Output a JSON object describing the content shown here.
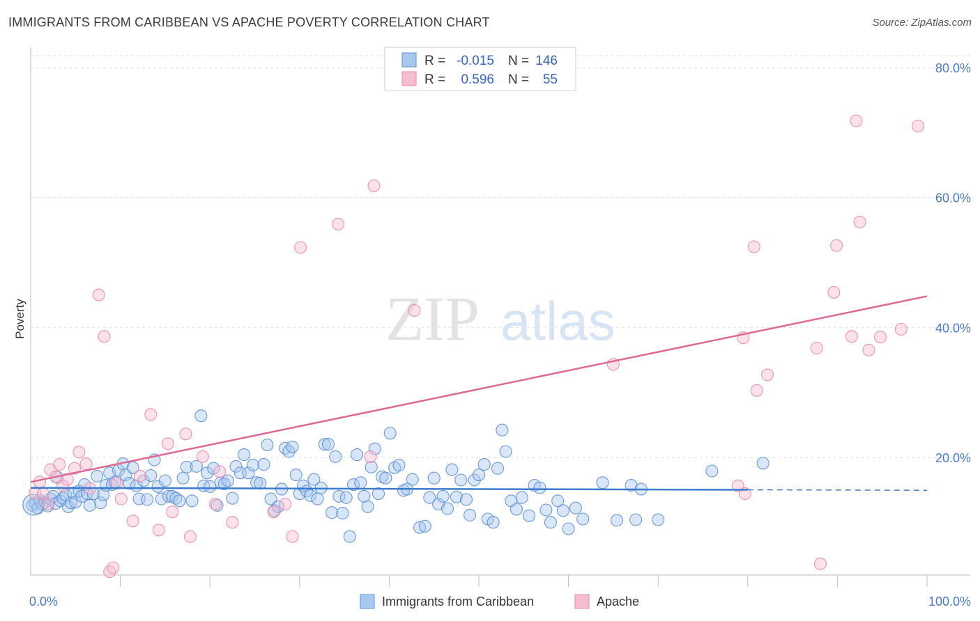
{
  "title": "IMMIGRANTS FROM CARIBBEAN VS APACHE POVERTY CORRELATION CHART",
  "source": "Source: ZipAtlas.com",
  "watermark": {
    "zip": "ZIP",
    "atlas": "atlas"
  },
  "colors": {
    "blue_fill": "#a8c8ee",
    "blue_stroke": "#5b8fd6",
    "blue_line": "#3b7bd0",
    "pink_fill": "#f6bcd0",
    "pink_stroke": "#e98aaa",
    "pink_line": "#e06892",
    "grid": "#dddddd",
    "axis_text": "#4a7cc4"
  },
  "legend": {
    "rows": [
      {
        "r_label": "R =",
        "r_value": "-0.015",
        "n_label": "N =",
        "n_value": "146"
      },
      {
        "r_label": "R =",
        "r_value": "0.596",
        "n_label": "N =",
        "n_value": "55"
      }
    ]
  },
  "chart_data": {
    "type": "scatter",
    "title": "IMMIGRANTS FROM CARIBBEAN VS APACHE POVERTY CORRELATION CHART",
    "xlabel": "",
    "ylabel": "Poverty",
    "xlim": [
      0,
      100
    ],
    "ylim": [
      0,
      80
    ],
    "x_tick_labels": [
      "0.0%",
      "100.0%"
    ],
    "y_ticks": [
      20,
      40,
      60,
      80
    ],
    "y_tick_labels": [
      "20.0%",
      "40.0%",
      "60.0%",
      "80.0%"
    ],
    "grid": true,
    "series": [
      {
        "name": "Immigrants from Caribbean",
        "color": "#5b8fd6",
        "trend": {
          "x0": 0,
          "y0": 15.3,
          "x1": 80,
          "y1": 15.0,
          "dashed_to": 100
        },
        "points": [
          [
            0.2,
            12.6
          ],
          [
            0.5,
            13.0
          ],
          [
            0.8,
            12.2
          ],
          [
            1.0,
            13.4
          ],
          [
            1.3,
            12.8
          ],
          [
            1.6,
            13.1
          ],
          [
            1.9,
            12.5
          ],
          [
            2.2,
            13.6
          ],
          [
            2.5,
            14.0
          ],
          [
            2.8,
            12.9
          ],
          [
            3.0,
            16.9
          ],
          [
            3.3,
            13.3
          ],
          [
            3.6,
            13.7
          ],
          [
            3.9,
            14.2
          ],
          [
            4.2,
            12.4
          ],
          [
            4.5,
            13.0
          ],
          [
            4.8,
            14.5
          ],
          [
            5.0,
            13.1
          ],
          [
            5.4,
            14.8
          ],
          [
            5.7,
            14.0
          ],
          [
            6.0,
            15.8
          ],
          [
            6.3,
            14.4
          ],
          [
            6.6,
            12.6
          ],
          [
            7.0,
            14.4
          ],
          [
            7.4,
            17.1
          ],
          [
            7.8,
            13.0
          ],
          [
            8.1,
            14.2
          ],
          [
            8.4,
            15.7
          ],
          [
            8.8,
            17.6
          ],
          [
            9.1,
            15.8
          ],
          [
            9.4,
            16.2
          ],
          [
            9.8,
            18.0
          ],
          [
            10.3,
            19.0
          ],
          [
            10.6,
            17.3
          ],
          [
            11.0,
            16.0
          ],
          [
            11.4,
            18.4
          ],
          [
            11.8,
            15.6
          ],
          [
            12.1,
            13.6
          ],
          [
            12.6,
            16.4
          ],
          [
            13.0,
            13.5
          ],
          [
            13.4,
            17.2
          ],
          [
            13.8,
            19.6
          ],
          [
            14.2,
            15.5
          ],
          [
            14.6,
            13.6
          ],
          [
            15.0,
            16.4
          ],
          [
            15.4,
            14.0
          ],
          [
            15.8,
            14.0
          ],
          [
            16.2,
            13.7
          ],
          [
            16.6,
            13.3
          ],
          [
            17.0,
            16.8
          ],
          [
            17.4,
            18.5
          ],
          [
            18.0,
            13.3
          ],
          [
            18.5,
            18.6
          ],
          [
            19.0,
            26.4
          ],
          [
            19.3,
            15.6
          ],
          [
            19.7,
            17.6
          ],
          [
            20.0,
            15.5
          ],
          [
            20.4,
            18.3
          ],
          [
            20.8,
            12.6
          ],
          [
            21.2,
            16.1
          ],
          [
            21.6,
            15.9
          ],
          [
            22.0,
            16.4
          ],
          [
            22.5,
            13.7
          ],
          [
            22.9,
            18.6
          ],
          [
            23.4,
            17.6
          ],
          [
            23.8,
            20.4
          ],
          [
            24.3,
            17.6
          ],
          [
            24.8,
            18.8
          ],
          [
            25.2,
            16.1
          ],
          [
            25.6,
            16.0
          ],
          [
            26.0,
            18.9
          ],
          [
            26.4,
            21.9
          ],
          [
            26.8,
            13.6
          ],
          [
            27.2,
            11.8
          ],
          [
            27.6,
            12.4
          ],
          [
            28.0,
            15.1
          ],
          [
            28.4,
            21.4
          ],
          [
            28.8,
            20.9
          ],
          [
            29.2,
            21.6
          ],
          [
            29.6,
            17.3
          ],
          [
            30.0,
            14.4
          ],
          [
            30.4,
            15.6
          ],
          [
            30.8,
            14.8
          ],
          [
            31.2,
            14.1
          ],
          [
            31.6,
            16.6
          ],
          [
            32.0,
            13.6
          ],
          [
            32.4,
            15.3
          ],
          [
            32.8,
            22.0
          ],
          [
            33.2,
            22.0
          ],
          [
            33.6,
            11.5
          ],
          [
            34.0,
            20.1
          ],
          [
            34.4,
            14.0
          ],
          [
            34.8,
            11.4
          ],
          [
            35.2,
            13.8
          ],
          [
            35.6,
            7.8
          ],
          [
            36.0,
            15.8
          ],
          [
            36.4,
            20.4
          ],
          [
            36.8,
            16.1
          ],
          [
            37.2,
            14.0
          ],
          [
            37.6,
            12.4
          ],
          [
            38.0,
            18.5
          ],
          [
            38.4,
            21.3
          ],
          [
            38.8,
            14.4
          ],
          [
            39.2,
            17.0
          ],
          [
            39.6,
            16.8
          ],
          [
            40.1,
            23.7
          ],
          [
            40.6,
            18.4
          ],
          [
            41.1,
            18.8
          ],
          [
            41.6,
            14.9
          ],
          [
            42.0,
            15.1
          ],
          [
            42.6,
            16.6
          ],
          [
            43.4,
            9.2
          ],
          [
            44.0,
            9.4
          ],
          [
            44.5,
            13.8
          ],
          [
            45.0,
            16.8
          ],
          [
            45.5,
            12.8
          ],
          [
            46.0,
            14.0
          ],
          [
            46.5,
            12.1
          ],
          [
            47.0,
            18.1
          ],
          [
            47.5,
            13.9
          ],
          [
            48.0,
            16.5
          ],
          [
            48.6,
            13.5
          ],
          [
            49.0,
            11.1
          ],
          [
            49.5,
            16.5
          ],
          [
            50.0,
            17.3
          ],
          [
            50.6,
            18.9
          ],
          [
            51.0,
            10.5
          ],
          [
            51.6,
            10.0
          ],
          [
            52.1,
            18.3
          ],
          [
            52.6,
            24.2
          ],
          [
            53.0,
            20.9
          ],
          [
            53.6,
            13.3
          ],
          [
            54.2,
            12.0
          ],
          [
            54.8,
            13.8
          ],
          [
            55.6,
            11.0
          ],
          [
            56.2,
            15.7
          ],
          [
            56.8,
            15.3
          ],
          [
            57.5,
            11.9
          ],
          [
            58.0,
            10.0
          ],
          [
            58.8,
            13.3
          ],
          [
            59.4,
            11.8
          ],
          [
            60.0,
            9.0
          ],
          [
            60.8,
            12.2
          ],
          [
            61.6,
            10.5
          ],
          [
            63.8,
            16.1
          ],
          [
            65.4,
            10.3
          ],
          [
            67.0,
            15.7
          ],
          [
            67.5,
            10.4
          ],
          [
            68.1,
            15.1
          ],
          [
            70.0,
            10.4
          ],
          [
            76.0,
            17.9
          ],
          [
            81.7,
            19.1
          ]
        ]
      },
      {
        "name": "Apache",
        "color": "#e98aaa",
        "trend": {
          "x0": 0,
          "y0": 16.2,
          "x1": 100,
          "y1": 44.8
        },
        "points": [
          [
            0.5,
            14.5
          ],
          [
            1.0,
            16.2
          ],
          [
            1.4,
            14.4
          ],
          [
            1.9,
            12.8
          ],
          [
            2.2,
            18.1
          ],
          [
            2.8,
            17.0
          ],
          [
            3.2,
            18.9
          ],
          [
            3.6,
            15.6
          ],
          [
            4.1,
            16.6
          ],
          [
            4.9,
            18.3
          ],
          [
            5.4,
            20.8
          ],
          [
            6.2,
            19.0
          ],
          [
            6.6,
            15.2
          ],
          [
            7.6,
            45.0
          ],
          [
            8.2,
            38.6
          ],
          [
            8.8,
            2.4
          ],
          [
            9.2,
            3.0
          ],
          [
            9.6,
            16.0
          ],
          [
            10.1,
            13.6
          ],
          [
            11.4,
            10.2
          ],
          [
            12.2,
            17.1
          ],
          [
            13.4,
            26.6
          ],
          [
            14.3,
            8.8
          ],
          [
            15.3,
            22.1
          ],
          [
            15.8,
            11.6
          ],
          [
            17.3,
            23.6
          ],
          [
            17.8,
            7.8
          ],
          [
            19.2,
            20.1
          ],
          [
            20.6,
            12.8
          ],
          [
            21.1,
            17.8
          ],
          [
            22.5,
            10.0
          ],
          [
            27.1,
            11.6
          ],
          [
            28.4,
            12.8
          ],
          [
            29.2,
            7.8
          ],
          [
            30.1,
            52.3
          ],
          [
            34.3,
            55.9
          ],
          [
            37.9,
            20.1
          ],
          [
            38.3,
            61.8
          ],
          [
            42.8,
            42.6
          ],
          [
            65.0,
            34.3
          ],
          [
            78.9,
            15.6
          ],
          [
            79.5,
            38.4
          ],
          [
            79.7,
            14.4
          ],
          [
            80.7,
            52.4
          ],
          [
            81.0,
            30.3
          ],
          [
            82.2,
            32.7
          ],
          [
            87.7,
            36.8
          ],
          [
            88.1,
            3.6
          ],
          [
            89.6,
            45.4
          ],
          [
            89.9,
            52.6
          ],
          [
            91.6,
            38.6
          ],
          [
            92.1,
            71.8
          ],
          [
            92.5,
            56.2
          ],
          [
            93.5,
            36.5
          ],
          [
            94.8,
            38.5
          ],
          [
            97.1,
            39.7
          ],
          [
            99.0,
            71.0
          ]
        ]
      }
    ]
  }
}
